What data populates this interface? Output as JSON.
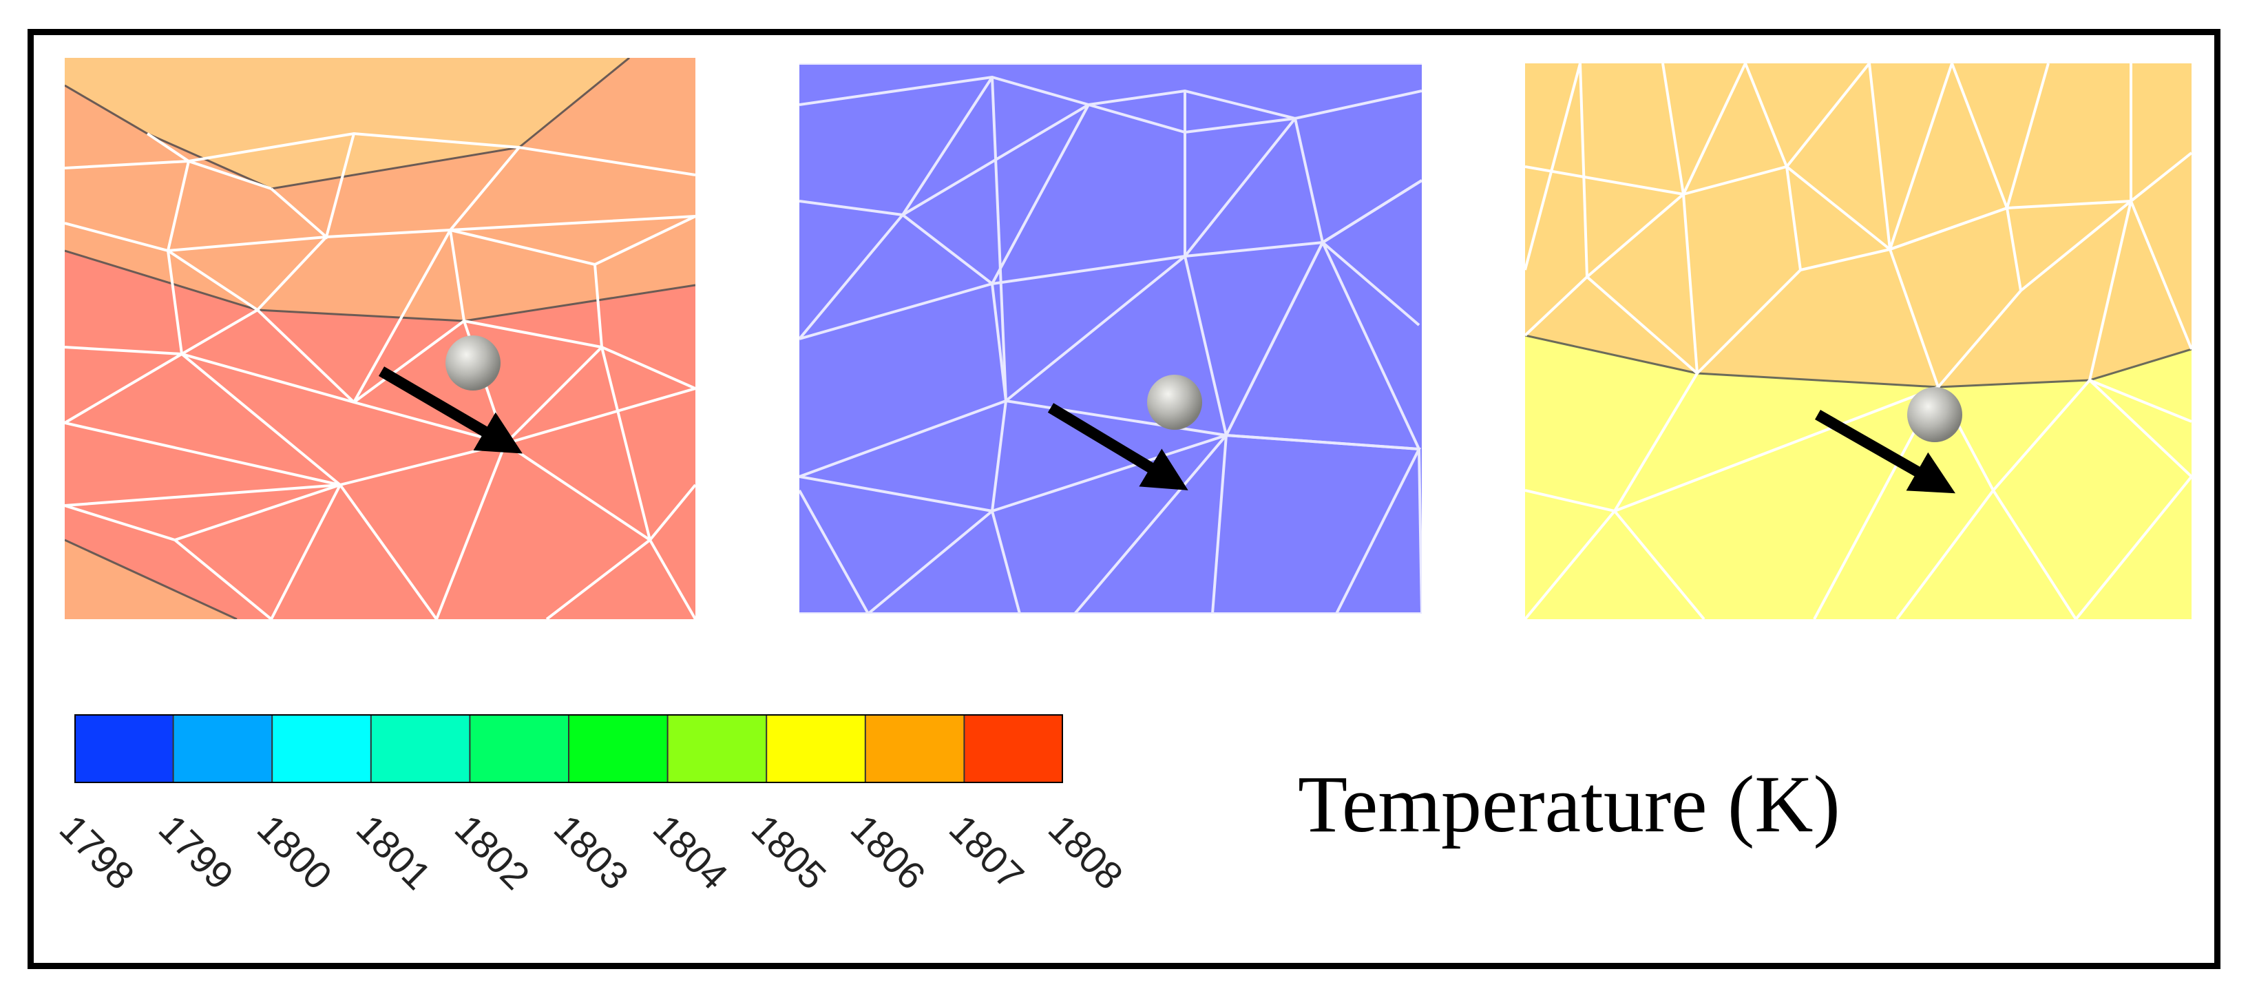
{
  "legend": {
    "title": "Temperature (K)",
    "ticks": [
      "1798",
      "1799",
      "1800",
      "1801",
      "1802",
      "1803",
      "1804",
      "1805",
      "1806",
      "1807",
      "1808"
    ],
    "colors": [
      "#0a3cff",
      "#00a6ff",
      "#00ffff",
      "#00ffc0",
      "#00ff66",
      "#00ff19",
      "#8cff14",
      "#ffff00",
      "#ffa600",
      "#ff3d00"
    ]
  },
  "panels": [
    {
      "id": "panel-1",
      "regions": [
        "#fec984",
        "#fead7e",
        "#ff8c7b"
      ],
      "particle": "gray-sphere",
      "arrow": "black-arrow"
    },
    {
      "id": "panel-2",
      "regions": [
        "#8080ff"
      ],
      "particle": "gray-sphere",
      "arrow": "black-arrow"
    },
    {
      "id": "panel-3",
      "regions": [
        "#ffd87f",
        "#ffff80"
      ],
      "particle": "gray-sphere",
      "arrow": "black-arrow"
    }
  ],
  "mesh_color": "#ffffff"
}
